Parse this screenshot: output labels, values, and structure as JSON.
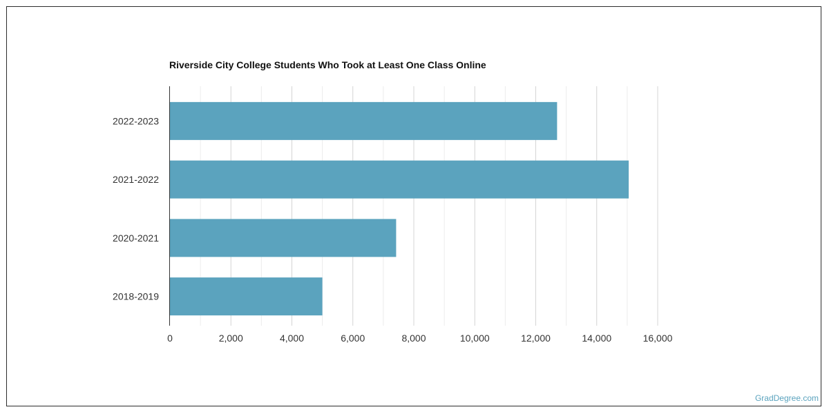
{
  "chart_data": {
    "type": "bar",
    "orientation": "horizontal",
    "title": "Riverside City College Students Who Took at Least One Class Online",
    "categories": [
      "2022-2023",
      "2021-2022",
      "2020-2021",
      "2018-2019"
    ],
    "values": [
      12700,
      15050,
      7420,
      5000
    ],
    "xlim": [
      0,
      16000
    ],
    "x_ticks": [
      0,
      2000,
      4000,
      6000,
      8000,
      10000,
      12000,
      14000,
      16000
    ],
    "x_tick_labels": [
      "0",
      "2,000",
      "4,000",
      "6,000",
      "8,000",
      "10,000",
      "12,000",
      "14,000",
      "16,000"
    ],
    "xlabel": "",
    "ylabel": "",
    "grid": true,
    "bar_color": "#5ba3be",
    "grid_color": "#dddddd"
  },
  "watermark": "GradDegree.com"
}
